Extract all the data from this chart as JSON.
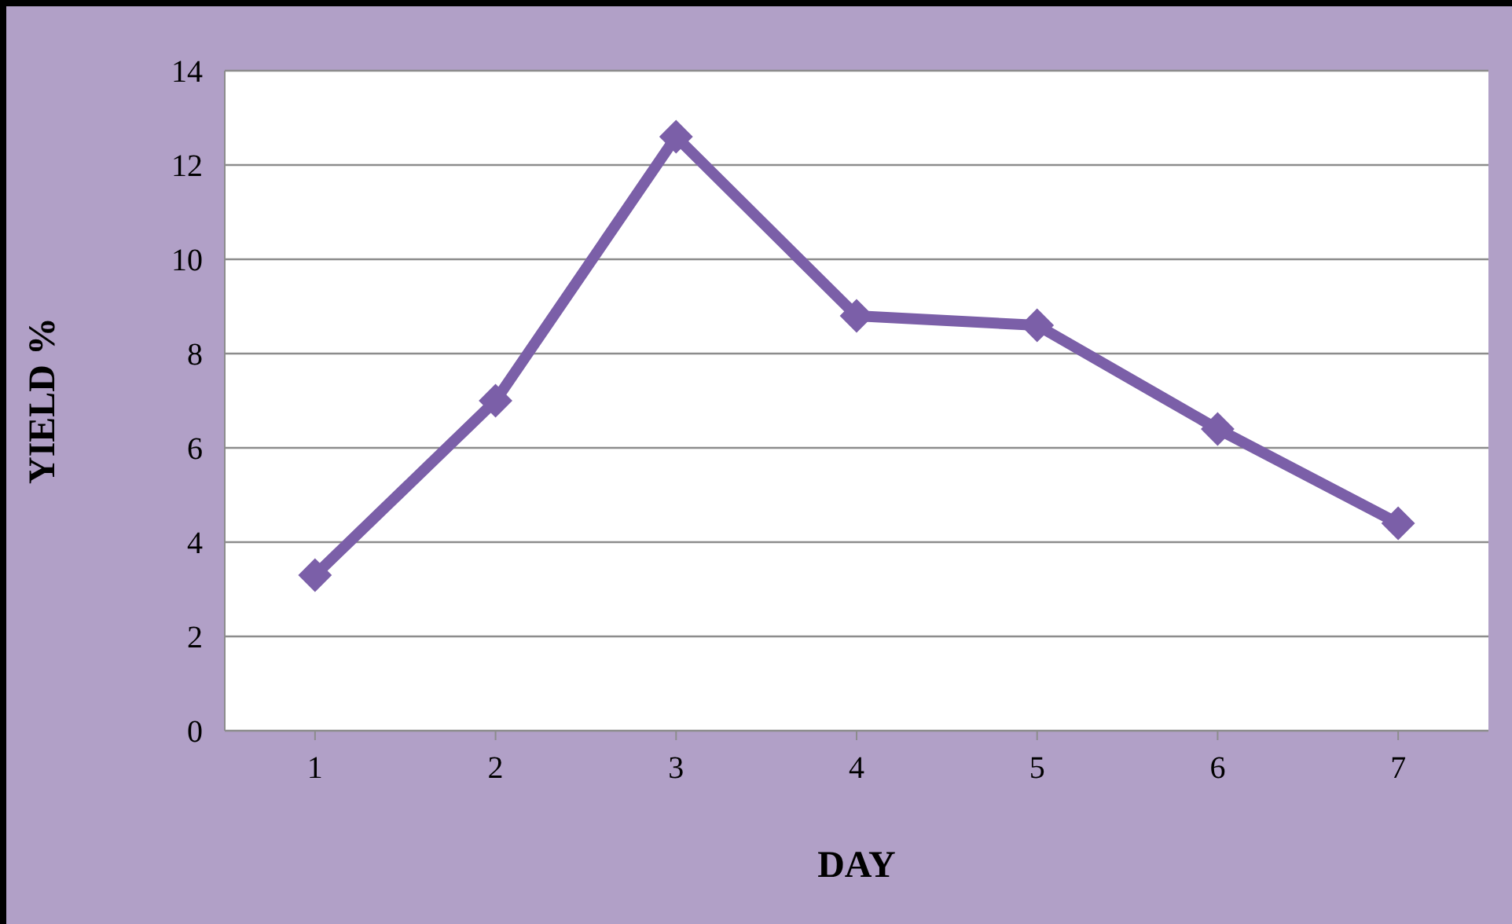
{
  "chart_data": {
    "type": "line",
    "xlabel": "DAY",
    "ylabel": "YIELD %",
    "categories": [
      "1",
      "2",
      "3",
      "4",
      "5",
      "6",
      "7"
    ],
    "series": [
      {
        "color": "#7b5fa8",
        "values": [
          3.3,
          7.0,
          12.6,
          8.8,
          8.6,
          6.4,
          4.4
        ]
      }
    ],
    "ylim": [
      0,
      14
    ],
    "yticks": [
      0,
      2,
      4,
      6,
      8,
      10,
      12,
      14
    ],
    "grid": "y",
    "marker": "diamond",
    "line_style": "solid"
  }
}
